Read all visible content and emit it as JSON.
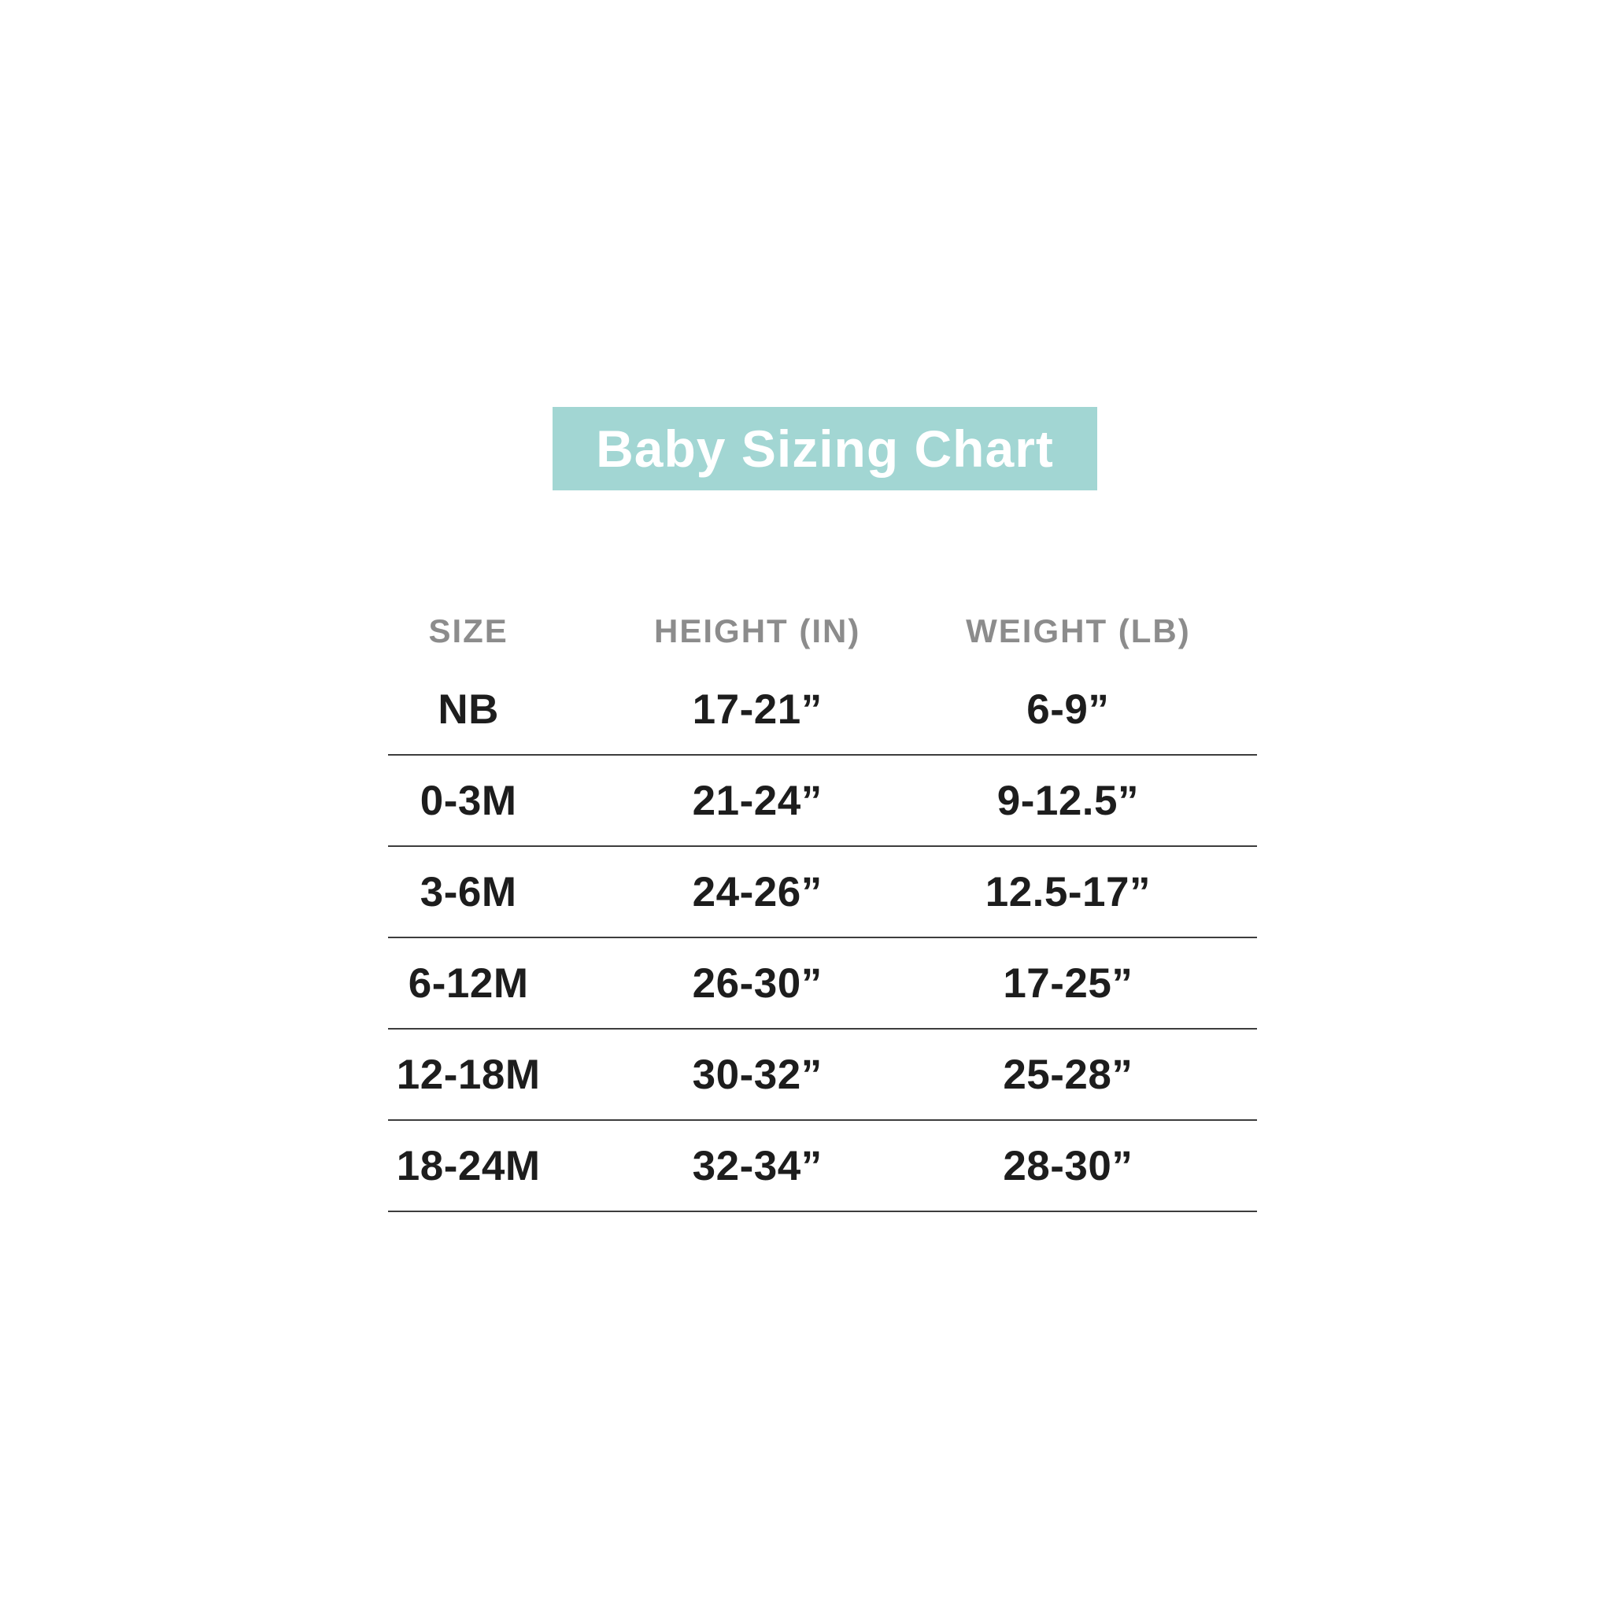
{
  "title": {
    "text": "Baby Sizing Chart",
    "banner_color": "#a2d6d3",
    "text_color": "#ffffff"
  },
  "colors": {
    "background": "#ffffff",
    "header_text": "#8c8c8c",
    "body_text": "#1d1d1d",
    "divider": "#3d3d3d"
  },
  "table": {
    "headers": [
      "SIZE",
      "HEIGHT (IN)",
      "WEIGHT (LB)"
    ],
    "rows": [
      {
        "size": "NB",
        "height": "17-21”",
        "weight": "6-9”"
      },
      {
        "size": "0-3M",
        "height": "21-24”",
        "weight": "9-12.5”"
      },
      {
        "size": "3-6M",
        "height": "24-26”",
        "weight": "12.5-17”"
      },
      {
        "size": "6-12M",
        "height": "26-30”",
        "weight": "17-25”"
      },
      {
        "size": "12-18M",
        "height": "30-32”",
        "weight": "25-28”"
      },
      {
        "size": "18-24M",
        "height": "32-34”",
        "weight": "28-30”"
      }
    ]
  },
  "chart_data": {
    "type": "table",
    "title": "Baby Sizing Chart",
    "columns": [
      "SIZE",
      "HEIGHT (IN)",
      "WEIGHT (LB)"
    ],
    "rows": [
      [
        "NB",
        "17-21”",
        "6-9”"
      ],
      [
        "0-3M",
        "21-24”",
        "9-12.5”"
      ],
      [
        "3-6M",
        "24-26”",
        "12.5-17”"
      ],
      [
        "6-12M",
        "26-30”",
        "17-25”"
      ],
      [
        "12-18M",
        "30-32”",
        "25-28”"
      ],
      [
        "18-24M",
        "32-34”",
        "28-30”"
      ]
    ],
    "units": {
      "height": "inches",
      "weight": "pounds"
    },
    "layout_hints": {
      "header_color": "gray",
      "row_dividers": true,
      "title_banner": "teal"
    }
  }
}
